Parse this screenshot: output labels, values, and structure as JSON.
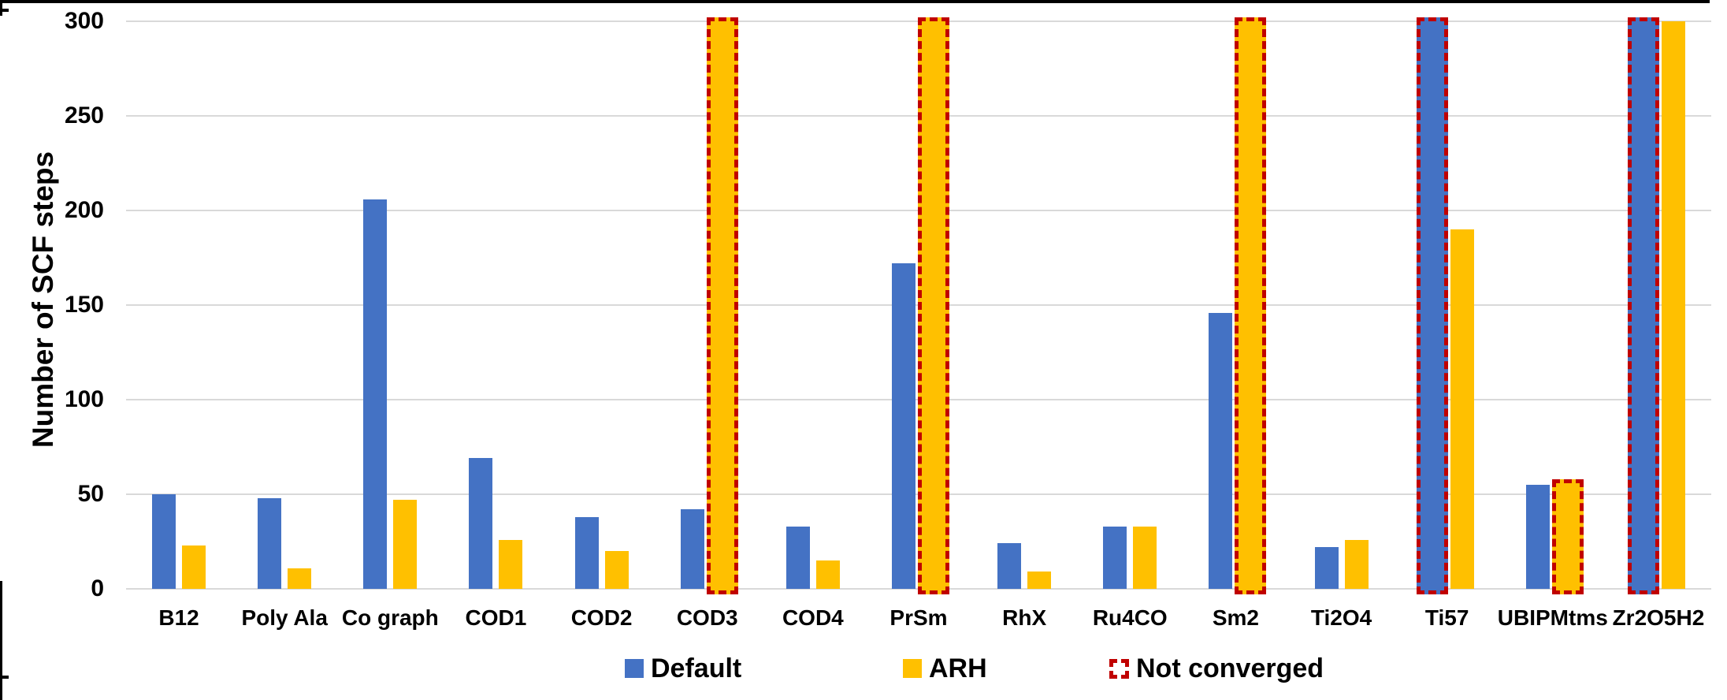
{
  "chart_data": {
    "type": "bar",
    "title": "",
    "xlabel": "",
    "ylabel": "Number of SCF steps",
    "ylim": [
      0,
      300
    ],
    "yticks": [
      0,
      50,
      100,
      150,
      200,
      250,
      300
    ],
    "grid": true,
    "legend_position": "bottom",
    "categories": [
      "B12",
      "Poly Ala",
      "Co graph",
      "COD1",
      "COD2",
      "COD3",
      "COD4",
      "PrSm",
      "RhX",
      "Ru4CO",
      "Sm2",
      "Ti2O4",
      "Ti57",
      "UBIPMtms",
      "Zr2O5H2"
    ],
    "series": [
      {
        "name": "Default",
        "color": "#4472C4",
        "values": [
          50,
          48,
          206,
          69,
          38,
          42,
          33,
          172,
          24,
          33,
          146,
          22,
          300,
          55,
          300
        ],
        "not_converged": [
          false,
          false,
          false,
          false,
          false,
          false,
          false,
          false,
          false,
          false,
          false,
          false,
          true,
          false,
          true
        ]
      },
      {
        "name": "ARH",
        "color": "#FFC000",
        "values": [
          23,
          11,
          47,
          26,
          20,
          300,
          15,
          300,
          9,
          33,
          300,
          26,
          190,
          56,
          300
        ],
        "not_converged": [
          false,
          false,
          false,
          false,
          false,
          true,
          false,
          true,
          false,
          false,
          true,
          false,
          false,
          true,
          false
        ]
      }
    ],
    "not_converged_legend": {
      "label": "Not converged",
      "color": "#C00000"
    }
  },
  "colors": {
    "background": "#FFFFFF",
    "gridline": "#D9D9D9",
    "text": "#000000",
    "frame": "#000000",
    "default_series": "#4472C4",
    "arh_series": "#FFC000",
    "not_converged": "#C00000"
  }
}
